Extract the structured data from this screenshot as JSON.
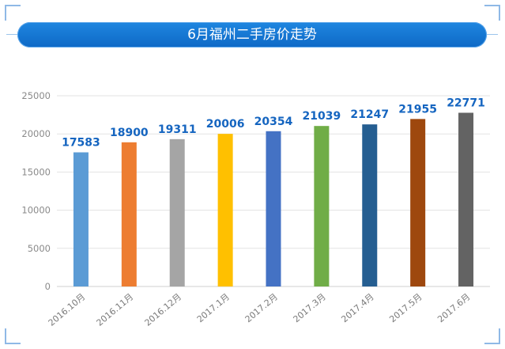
{
  "header": {
    "title": "6月福州二手房价走势"
  },
  "chart_data": {
    "type": "bar",
    "categories": [
      "2016.10月",
      "2016.11月",
      "2016.12月",
      "2017.1月",
      "2017.2月",
      "2017.3月",
      "2017.4月",
      "2017.5月",
      "2017.6月"
    ],
    "values": [
      17583,
      18900,
      19311,
      20006,
      20354,
      21039,
      21247,
      21955,
      22771
    ],
    "colors": [
      "#5b9bd5",
      "#ed7d31",
      "#a5a5a5",
      "#ffc000",
      "#4472c4",
      "#70ad47",
      "#255e91",
      "#9e480e",
      "#636363"
    ],
    "title": "6月福州二手房价走势",
    "xlabel": "",
    "ylabel": "",
    "ylim": [
      0,
      25000
    ],
    "yticks": [
      0,
      5000,
      10000,
      15000,
      20000,
      25000
    ],
    "grid": true,
    "legend": "none"
  }
}
